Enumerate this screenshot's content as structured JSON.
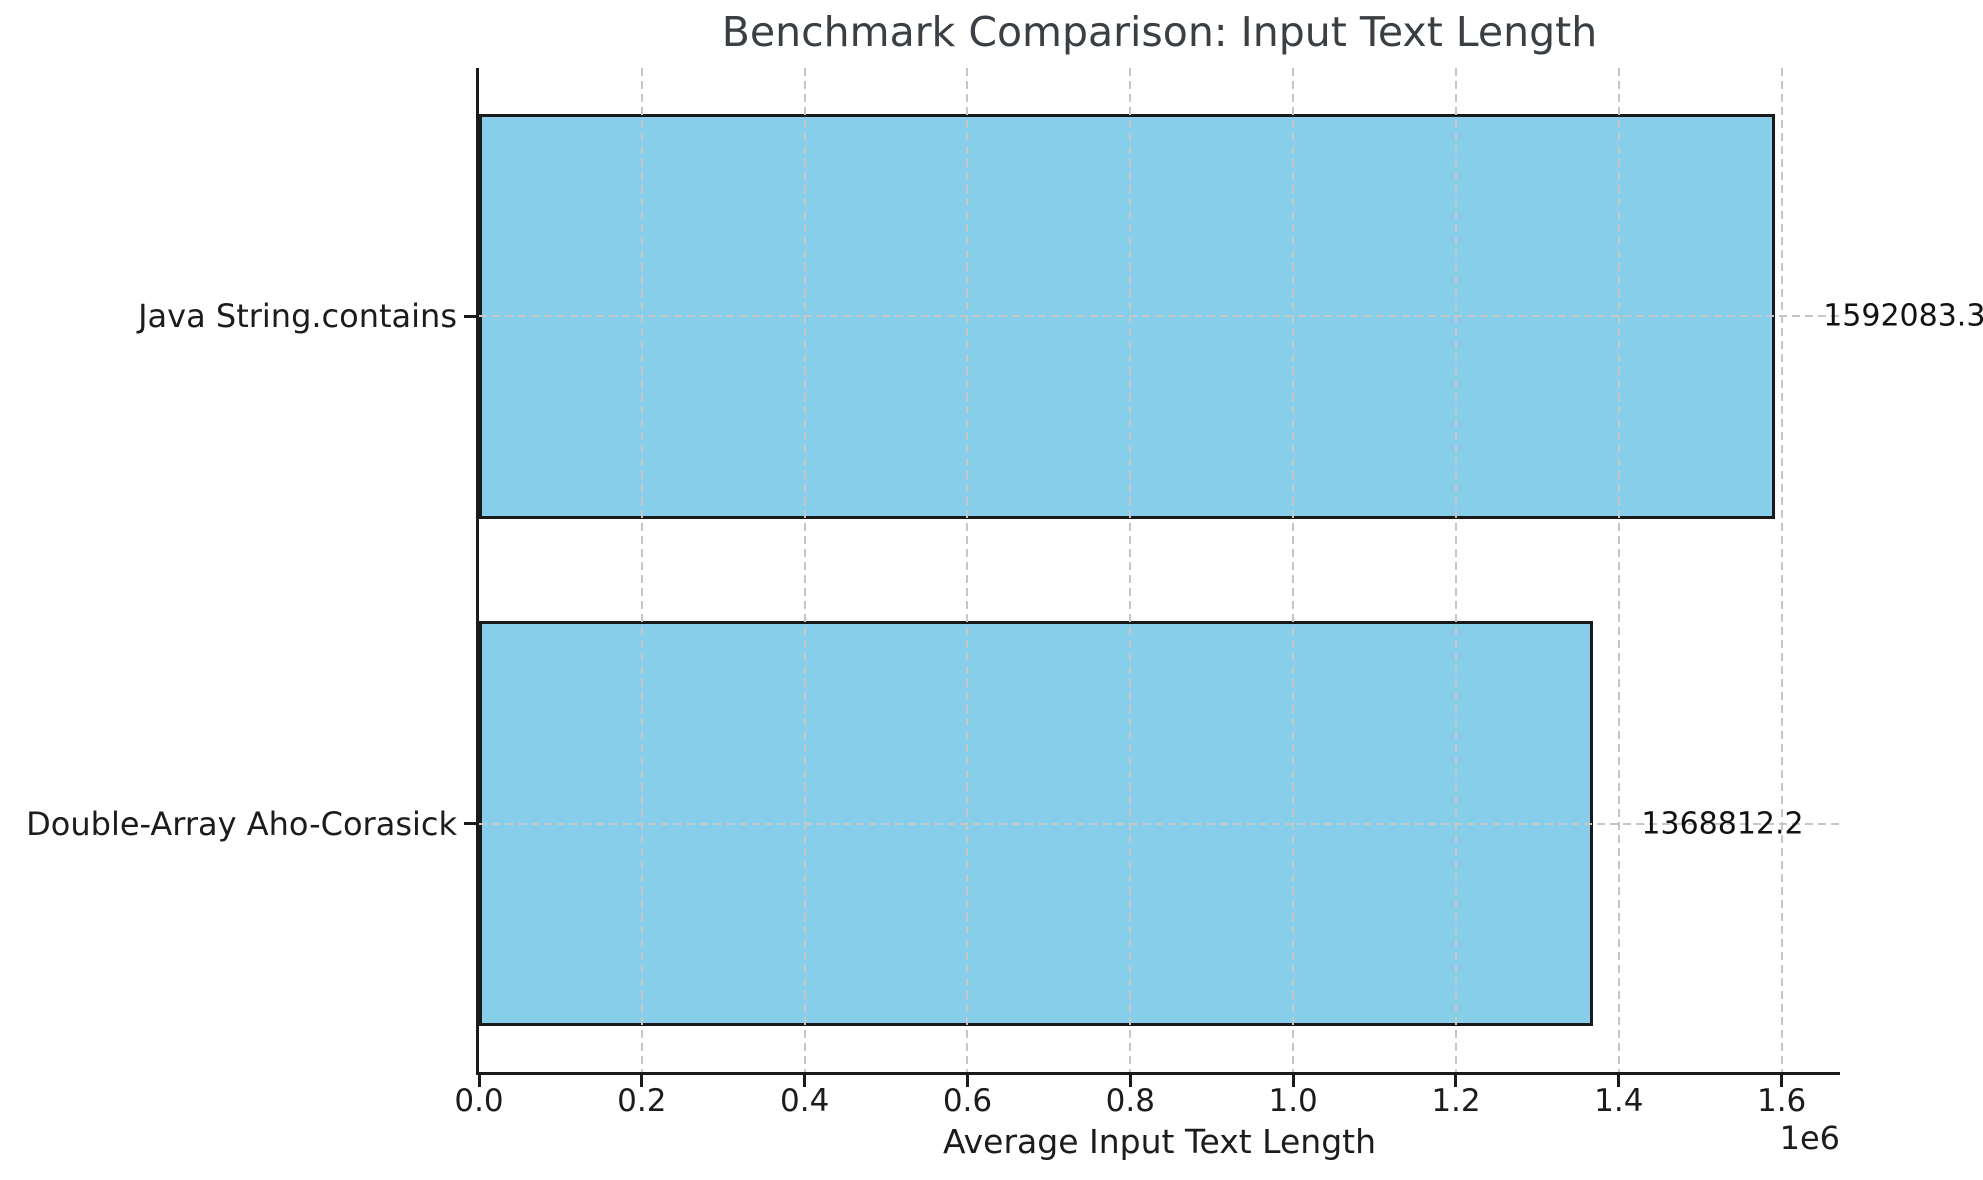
{
  "chart_data": {
    "type": "bar",
    "orientation": "horizontal",
    "title": "Benchmark Comparison: Input Text Length",
    "xlabel": "Average Input Text Length",
    "ylabel": "",
    "categories": [
      "Java String.contains",
      "Double-Array Aho-Corasick"
    ],
    "values": [
      1592083.3,
      1368812.2
    ],
    "value_labels": [
      "1592083.3",
      "1368812.2"
    ],
    "xlim": [
      0,
      1671687.5
    ],
    "xticks": [
      0,
      200000,
      400000,
      600000,
      800000,
      1000000,
      1200000,
      1400000,
      1600000
    ],
    "xtick_labels": [
      "0.0",
      "0.2",
      "0.4",
      "0.6",
      "0.8",
      "1.0",
      "1.2",
      "1.4",
      "1.6"
    ],
    "offset_label": "1e6",
    "grid": true,
    "grid_style": "dashed",
    "legend": "none",
    "bar_color": "#87CEEB",
    "bar_edge_color": "#1a1a1a",
    "grid_color": "#c6c6c6"
  }
}
